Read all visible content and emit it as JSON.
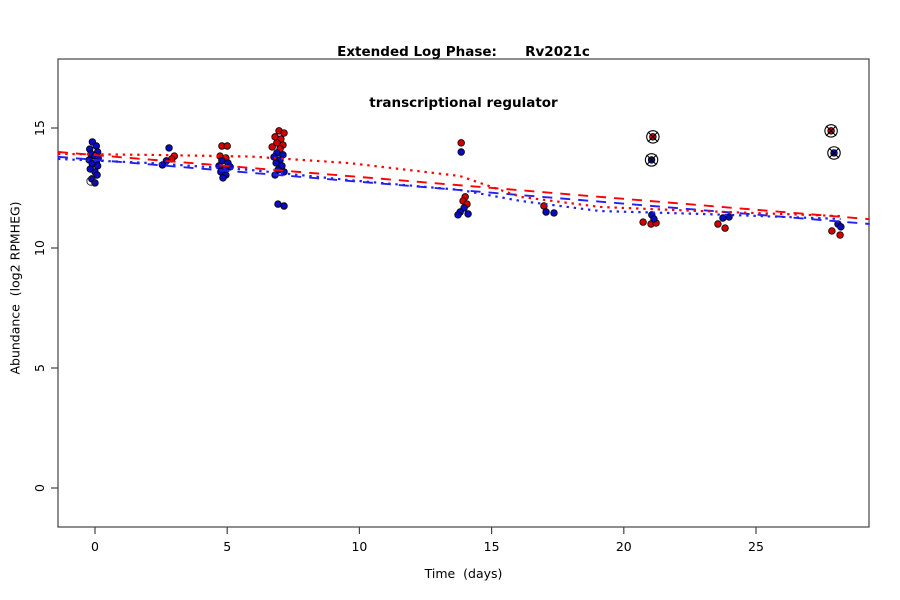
{
  "title": {
    "line1": "Extended Log Phase:      Rv2021c",
    "line2": "transcriptional regulator"
  },
  "chart_data": {
    "type": "scatter",
    "title": "Extended Log Phase: Rv2021c transcriptional regulator",
    "xlabel": "Time  (days)",
    "ylabel": "Abundance  (log2 RPMHEG)",
    "xlim": [
      -1.4,
      29.3
    ],
    "ylim": [
      -1.63,
      17.9
    ],
    "x_ticks": [
      0,
      5,
      10,
      15,
      20,
      25
    ],
    "y_ticks": [
      0,
      5,
      10,
      15
    ],
    "grid": false,
    "legend": "none",
    "colors": {
      "point_red": "#d40000",
      "point_blue": "#0a0ac0",
      "line_red": "#ff0000",
      "line_blue": "#2222ee",
      "marker_edge": "#000000",
      "axis": "#444444"
    },
    "series": [
      {
        "name": "red-samples",
        "type": "scatter",
        "color_key": "point_red",
        "points": [
          [
            3.0,
            13.83
          ],
          [
            2.9,
            13.71
          ],
          [
            4.8,
            14.25
          ],
          [
            5.0,
            14.25
          ],
          [
            4.73,
            13.83
          ],
          [
            4.95,
            13.75
          ],
          [
            6.96,
            14.88
          ],
          [
            7.15,
            14.79
          ],
          [
            6.81,
            14.63
          ],
          [
            7.03,
            14.54
          ],
          [
            6.88,
            14.38
          ],
          [
            7.11,
            14.29
          ],
          [
            6.7,
            14.21
          ],
          [
            7.0,
            14.13
          ],
          [
            13.85,
            14.38
          ],
          [
            14.0,
            12.13
          ],
          [
            13.92,
            11.96
          ],
          [
            14.07,
            11.83
          ],
          [
            16.98,
            11.75
          ],
          [
            20.73,
            11.08
          ],
          [
            21.03,
            11.0
          ],
          [
            21.22,
            11.04
          ],
          [
            23.56,
            11.0
          ],
          [
            23.83,
            10.83
          ],
          [
            27.87,
            10.71
          ],
          [
            28.18,
            10.54
          ]
        ]
      },
      {
        "name": "blue-samples",
        "type": "scatter",
        "color_key": "point_blue",
        "points": [
          [
            -0.1,
            14.42
          ],
          [
            0.05,
            14.25
          ],
          [
            -0.2,
            14.12
          ],
          [
            0.1,
            14.0
          ],
          [
            -0.15,
            13.92
          ],
          [
            0.0,
            13.83
          ],
          [
            0.12,
            13.75
          ],
          [
            -0.22,
            13.67
          ],
          [
            0.05,
            13.58
          ],
          [
            -0.1,
            13.5
          ],
          [
            0.1,
            13.42
          ],
          [
            -0.18,
            13.29
          ],
          [
            0.0,
            13.17
          ],
          [
            0.08,
            13.04
          ],
          [
            -0.12,
            12.88
          ],
          [
            0.0,
            12.71
          ],
          [
            2.8,
            14.17
          ],
          [
            2.7,
            13.63
          ],
          [
            2.55,
            13.46
          ],
          [
            4.8,
            13.63
          ],
          [
            5.03,
            13.54
          ],
          [
            4.69,
            13.42
          ],
          [
            5.11,
            13.38
          ],
          [
            4.92,
            13.29
          ],
          [
            4.76,
            13.17
          ],
          [
            4.95,
            13.04
          ],
          [
            4.84,
            12.92
          ],
          [
            6.88,
            13.96
          ],
          [
            7.11,
            13.88
          ],
          [
            6.77,
            13.79
          ],
          [
            7.0,
            13.67
          ],
          [
            6.85,
            13.54
          ],
          [
            7.07,
            13.42
          ],
          [
            6.92,
            13.25
          ],
          [
            7.15,
            13.17
          ],
          [
            6.81,
            13.04
          ],
          [
            6.92,
            11.83
          ],
          [
            7.15,
            11.75
          ],
          [
            13.85,
            14.0
          ],
          [
            13.96,
            11.67
          ],
          [
            13.81,
            11.5
          ],
          [
            14.11,
            11.42
          ],
          [
            13.73,
            11.38
          ],
          [
            17.06,
            11.5
          ],
          [
            17.36,
            11.46
          ],
          [
            21.06,
            11.38
          ],
          [
            21.14,
            11.21
          ],
          [
            23.75,
            11.25
          ],
          [
            23.98,
            11.29
          ],
          [
            28.1,
            11.0
          ],
          [
            28.21,
            10.88
          ]
        ]
      },
      {
        "name": "red-flagged-outliers",
        "type": "scatter",
        "marker": "circle-x",
        "color_key": "point_red",
        "points": [
          [
            21.1,
            14.63
          ],
          [
            27.84,
            14.88
          ]
        ]
      },
      {
        "name": "blue-flagged-outliers",
        "type": "scatter",
        "marker": "circle-x",
        "color_key": "point_blue",
        "points": [
          [
            21.05,
            13.67
          ],
          [
            27.95,
            13.96
          ]
        ]
      },
      {
        "name": "open-circle-marker",
        "type": "scatter",
        "marker": "open",
        "color_key": "marker_edge",
        "points": [
          [
            -0.15,
            12.79
          ]
        ]
      },
      {
        "name": "red-linear-fit",
        "type": "line",
        "style": "dashed",
        "color_key": "line_red",
        "points": [
          [
            -1.4,
            14.0
          ],
          [
            29.3,
            11.2
          ]
        ]
      },
      {
        "name": "blue-linear-fit",
        "type": "line",
        "style": "dashed",
        "color_key": "line_blue",
        "points": [
          [
            -1.4,
            13.8
          ],
          [
            29.3,
            11.0
          ]
        ]
      },
      {
        "name": "red-loess-fit",
        "type": "line",
        "style": "dotted",
        "color_key": "line_red",
        "points": [
          [
            -1.4,
            13.92
          ],
          [
            2.1,
            13.88
          ],
          [
            5.9,
            13.81
          ],
          [
            9.6,
            13.54
          ],
          [
            13.8,
            13.0
          ],
          [
            16.1,
            12.13
          ],
          [
            19.1,
            11.71
          ],
          [
            22.9,
            11.54
          ],
          [
            28.2,
            11.33
          ]
        ]
      },
      {
        "name": "blue-loess-fit",
        "type": "line",
        "style": "dotted",
        "color_key": "line_blue",
        "points": [
          [
            -1.4,
            13.71
          ],
          [
            2.1,
            13.54
          ],
          [
            5.9,
            13.25
          ],
          [
            9.6,
            12.83
          ],
          [
            13.8,
            12.42
          ],
          [
            16.1,
            11.96
          ],
          [
            19.1,
            11.54
          ],
          [
            22.9,
            11.42
          ],
          [
            28.2,
            11.21
          ]
        ]
      }
    ]
  }
}
